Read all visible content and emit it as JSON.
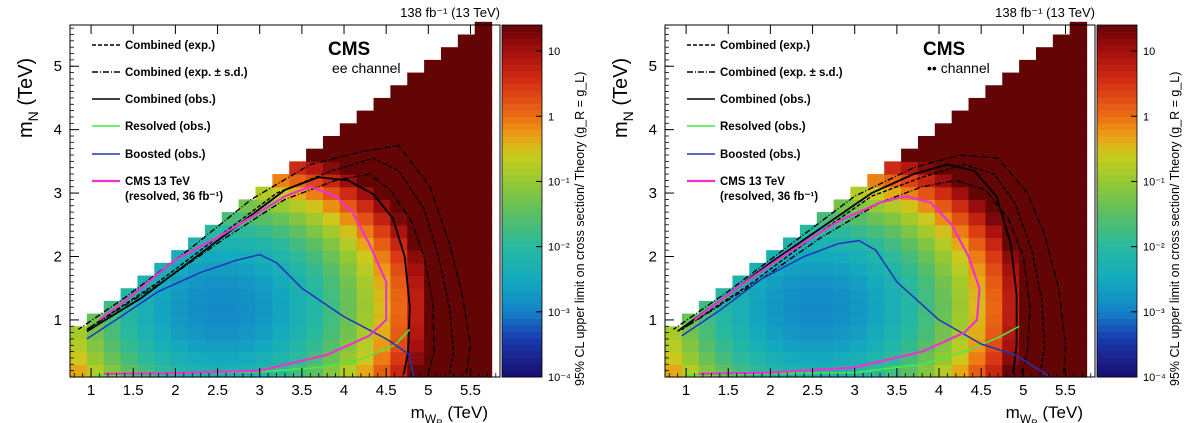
{
  "chart_data": [
    {
      "type": "heatmap",
      "title": "",
      "lumi_label": "138 fb⁻¹ (13 TeV)",
      "experiment": "CMS",
      "channel": "ee channel",
      "xlabel": "m_W_R (TeV)",
      "ylabel": "m_N (TeV)",
      "zlabel": "95% CL upper limit on cross section/ Theory (g_R = g_L)",
      "xlim": [
        0.75,
        5.85
      ],
      "ylim": [
        0.1,
        5.65
      ],
      "zlim_log10": [
        -4,
        1.4
      ],
      "x_ticks": [
        "1",
        "1.5",
        "2",
        "2.5",
        "3",
        "3.5",
        "4",
        "4.5",
        "5",
        "5.5"
      ],
      "y_ticks": [
        "1",
        "2",
        "3",
        "4",
        "5"
      ],
      "z_ticks": [
        "10",
        "1",
        "10⁻¹",
        "10⁻²",
        "10⁻³",
        "10⁻⁴"
      ],
      "legend_position": "top-left",
      "legend": [
        {
          "label": "Combined (exp.)",
          "style": "dashed",
          "color": "#000000"
        },
        {
          "label": "Combined (exp. ± s.d.)",
          "style": "dashdot",
          "color": "#000000"
        },
        {
          "label": "Combined (obs.)",
          "style": "solid",
          "color": "#000000"
        },
        {
          "label": "Resolved (obs.)",
          "style": "solid",
          "color": "#44ee44"
        },
        {
          "label": "Boosted (obs.)",
          "style": "solid",
          "color": "#2233bb"
        },
        {
          "label": "CMS 13 TeV",
          "label2": "(resolved, 36 fb⁻¹)",
          "style": "solid",
          "color": "#ee33cc"
        }
      ],
      "grid": false,
      "curves": {
        "combined_obs": [
          [
            4.71,
            0.15
          ],
          [
            4.76,
            0.5
          ],
          [
            4.78,
            1.2
          ],
          [
            4.72,
            2.0
          ],
          [
            4.58,
            2.6
          ],
          [
            4.35,
            2.98
          ],
          [
            4.05,
            3.2
          ],
          [
            3.7,
            3.25
          ],
          [
            3.3,
            3.05
          ],
          [
            2.8,
            2.55
          ],
          [
            2.2,
            1.95
          ],
          [
            1.6,
            1.35
          ],
          [
            0.95,
            0.82
          ]
        ],
        "combined_exp": [
          [
            5.25,
            0.15
          ],
          [
            5.3,
            0.5
          ],
          [
            5.25,
            1.2
          ],
          [
            5.12,
            2.0
          ],
          [
            4.95,
            2.75
          ],
          [
            4.65,
            3.35
          ],
          [
            4.35,
            3.55
          ],
          [
            3.85,
            3.35
          ],
          [
            3.2,
            3.0
          ],
          [
            2.5,
            2.3
          ],
          [
            1.8,
            1.6
          ],
          [
            0.95,
            0.85
          ]
        ],
        "combined_exp_up": [
          [
            5.45,
            0.15
          ],
          [
            5.5,
            0.6
          ],
          [
            5.4,
            1.4
          ],
          [
            5.25,
            2.2
          ],
          [
            5.02,
            3.1
          ],
          [
            4.65,
            3.75
          ],
          [
            4.2,
            3.65
          ],
          [
            3.6,
            3.45
          ],
          [
            2.9,
            2.9
          ],
          [
            2.2,
            2.15
          ],
          [
            1.4,
            1.35
          ],
          [
            0.85,
            0.85
          ]
        ],
        "combined_exp_down": [
          [
            5.0,
            0.15
          ],
          [
            5.07,
            0.5
          ],
          [
            5.05,
            1.3
          ],
          [
            4.95,
            2.0
          ],
          [
            4.8,
            2.55
          ],
          [
            4.55,
            3.05
          ],
          [
            4.3,
            3.3
          ],
          [
            3.9,
            3.2
          ],
          [
            3.3,
            2.9
          ],
          [
            2.6,
            2.3
          ],
          [
            1.9,
            1.65
          ],
          [
            0.95,
            0.85
          ]
        ],
        "resolved_obs": [
          [
            1.05,
            0.13
          ],
          [
            2.0,
            0.16
          ],
          [
            3.0,
            0.18
          ],
          [
            3.7,
            0.25
          ],
          [
            4.2,
            0.38
          ],
          [
            4.6,
            0.6
          ],
          [
            4.78,
            0.85
          ]
        ],
        "boosted_obs": [
          [
            0.95,
            0.7
          ],
          [
            1.35,
            1.05
          ],
          [
            1.8,
            1.45
          ],
          [
            2.3,
            1.75
          ],
          [
            2.7,
            1.93
          ],
          [
            3.0,
            2.03
          ],
          [
            3.2,
            1.9
          ],
          [
            3.5,
            1.5
          ],
          [
            4.0,
            1.05
          ],
          [
            4.5,
            0.7
          ],
          [
            4.78,
            0.45
          ],
          [
            4.82,
            0.1
          ]
        ],
        "cms_2016_resolved": [
          [
            1.15,
            0.15
          ],
          [
            2.0,
            0.16
          ],
          [
            3.0,
            0.2
          ],
          [
            3.8,
            0.45
          ],
          [
            4.3,
            0.75
          ],
          [
            4.5,
            1.0
          ],
          [
            4.5,
            1.6
          ],
          [
            4.3,
            2.2
          ],
          [
            4.1,
            2.7
          ],
          [
            3.9,
            2.95
          ],
          [
            3.6,
            3.1
          ],
          [
            3.3,
            2.95
          ],
          [
            3.0,
            2.7
          ],
          [
            2.5,
            2.3
          ],
          [
            2.0,
            1.95
          ],
          [
            1.5,
            1.4
          ],
          [
            1.1,
            1.0
          ]
        ]
      }
    },
    {
      "type": "heatmap",
      "title": "",
      "lumi_label": "138 fb⁻¹ (13 TeV)",
      "experiment": "CMS",
      "channel": "•• channel",
      "xlabel": "m_W_R (TeV)",
      "ylabel": "m_N (TeV)",
      "zlabel": "95% CL upper limit on cross section/ Theory (g_R = g_L)",
      "xlim": [
        0.75,
        5.85
      ],
      "ylim": [
        0.1,
        5.65
      ],
      "zlim_log10": [
        -4,
        1.4
      ],
      "x_ticks": [
        "1",
        "1.5",
        "2",
        "2.5",
        "3",
        "3.5",
        "4",
        "4.5",
        "5",
        "5.5"
      ],
      "y_ticks": [
        "1",
        "2",
        "3",
        "4",
        "5"
      ],
      "z_ticks": [
        "10",
        "1",
        "10⁻¹",
        "10⁻²",
        "10⁻³",
        "10⁻⁴"
      ],
      "legend_position": "top-left",
      "legend": [
        {
          "label": "Combined (exp.)",
          "style": "dashed",
          "color": "#000000"
        },
        {
          "label": "Combined (exp. ± s.d.)",
          "style": "dashdot",
          "color": "#000000"
        },
        {
          "label": "Combined (obs.)",
          "style": "solid",
          "color": "#000000"
        },
        {
          "label": "Resolved (obs.)",
          "style": "solid",
          "color": "#44ee44"
        },
        {
          "label": "Boosted (obs.)",
          "style": "solid",
          "color": "#2233bb"
        },
        {
          "label": "CMS 13 TeV",
          "label2": "(resolved, 36 fb⁻¹)",
          "style": "solid",
          "color": "#ee33cc"
        }
      ],
      "grid": false,
      "curves": {
        "combined_obs": [
          [
            4.88,
            0.15
          ],
          [
            4.92,
            0.6
          ],
          [
            4.92,
            1.4
          ],
          [
            4.85,
            2.2
          ],
          [
            4.68,
            2.95
          ],
          [
            4.42,
            3.35
          ],
          [
            4.1,
            3.45
          ],
          [
            3.7,
            3.3
          ],
          [
            3.2,
            3.0
          ],
          [
            2.6,
            2.45
          ],
          [
            2.0,
            1.9
          ],
          [
            1.4,
            1.3
          ],
          [
            0.9,
            0.82
          ]
        ],
        "combined_exp": [
          [
            5.2,
            0.15
          ],
          [
            5.25,
            0.55
          ],
          [
            5.22,
            1.3
          ],
          [
            5.1,
            2.1
          ],
          [
            4.9,
            2.85
          ],
          [
            4.65,
            3.3
          ],
          [
            4.3,
            3.45
          ],
          [
            3.8,
            3.25
          ],
          [
            3.2,
            2.95
          ],
          [
            2.5,
            2.3
          ],
          [
            1.8,
            1.6
          ],
          [
            0.95,
            0.85
          ]
        ],
        "combined_exp_up": [
          [
            5.48,
            0.15
          ],
          [
            5.5,
            0.6
          ],
          [
            5.42,
            1.5
          ],
          [
            5.25,
            2.35
          ],
          [
            5.05,
            3.0
          ],
          [
            4.7,
            3.55
          ],
          [
            4.25,
            3.6
          ],
          [
            3.7,
            3.4
          ],
          [
            3.0,
            2.95
          ],
          [
            2.3,
            2.25
          ],
          [
            1.5,
            1.45
          ],
          [
            0.85,
            0.85
          ]
        ],
        "combined_exp_down": [
          [
            4.98,
            0.15
          ],
          [
            5.05,
            0.5
          ],
          [
            5.08,
            1.2
          ],
          [
            5.0,
            2.0
          ],
          [
            4.82,
            2.6
          ],
          [
            4.55,
            3.05
          ],
          [
            4.2,
            3.2
          ],
          [
            3.8,
            3.1
          ],
          [
            3.3,
            2.85
          ],
          [
            2.6,
            2.3
          ],
          [
            1.9,
            1.65
          ],
          [
            0.95,
            0.85
          ]
        ],
        "resolved_obs": [
          [
            1.0,
            0.13
          ],
          [
            2.0,
            0.15
          ],
          [
            3.0,
            0.17
          ],
          [
            3.8,
            0.3
          ],
          [
            4.3,
            0.5
          ],
          [
            4.7,
            0.72
          ],
          [
            4.95,
            0.9
          ]
        ],
        "boosted_obs": [
          [
            0.95,
            0.75
          ],
          [
            1.4,
            1.15
          ],
          [
            1.9,
            1.65
          ],
          [
            2.4,
            2.0
          ],
          [
            2.8,
            2.2
          ],
          [
            3.05,
            2.25
          ],
          [
            3.25,
            2.1
          ],
          [
            3.5,
            1.6
          ],
          [
            4.0,
            1.0
          ],
          [
            4.5,
            0.62
          ],
          [
            4.9,
            0.45
          ],
          [
            5.3,
            0.12
          ]
        ],
        "cms_2016_resolved": [
          [
            1.15,
            0.15
          ],
          [
            2.0,
            0.17
          ],
          [
            3.0,
            0.25
          ],
          [
            3.8,
            0.5
          ],
          [
            4.3,
            0.8
          ],
          [
            4.45,
            1.0
          ],
          [
            4.48,
            1.5
          ],
          [
            4.35,
            2.0
          ],
          [
            4.15,
            2.5
          ],
          [
            3.9,
            2.85
          ],
          [
            3.6,
            2.95
          ],
          [
            3.3,
            2.85
          ],
          [
            2.8,
            2.55
          ],
          [
            2.2,
            2.05
          ],
          [
            1.6,
            1.5
          ],
          [
            1.1,
            1.0
          ]
        ]
      }
    }
  ]
}
